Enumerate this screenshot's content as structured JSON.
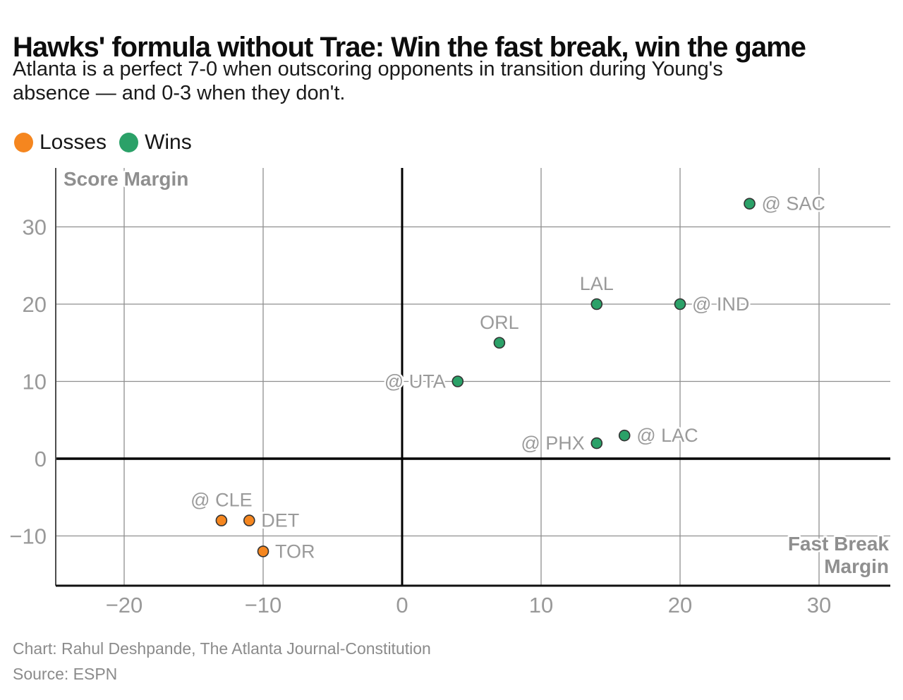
{
  "title": "Hawks' formula without Trae: Win the fast break, win the game",
  "subtitle": {
    "line1": "Atlanta is a perfect 7-0 when outscoring opponents in transition during Young's",
    "line2": "absence — and 0-3 when they don't."
  },
  "legend": {
    "items": [
      {
        "label": "Losses",
        "color": "#f5861f"
      },
      {
        "label": "Wins",
        "color": "#2ba168"
      }
    ]
  },
  "chart_data": {
    "type": "scatter",
    "xlabel": "Fast Break Margin",
    "ylabel": "Score Margin",
    "xlim": [
      -24.9,
      35.1
    ],
    "ylim": [
      -16.4,
      37.6
    ],
    "x_ticks": [
      -20,
      -10,
      0,
      10,
      20,
      30
    ],
    "y_ticks": [
      -10,
      0,
      10,
      20,
      30
    ],
    "grid": true,
    "zero_lines": true,
    "colors": {
      "grid": "#8f8f8f",
      "zero_line": "#000000",
      "axis": "#111111",
      "tick_label": "#999999",
      "point_label": "#9a9a9a",
      "axis_title": "#8f8f8f",
      "point_stroke": "#333333"
    },
    "series": [
      {
        "name": "Wins",
        "color": "#2ba168",
        "points": [
          {
            "label": "@ SAC",
            "x": 25,
            "y": 33,
            "label_pos": "right"
          },
          {
            "label": "LAL",
            "x": 14,
            "y": 20,
            "label_pos": "above"
          },
          {
            "label": "@ IND",
            "x": 20,
            "y": 20,
            "label_pos": "right"
          },
          {
            "label": "ORL",
            "x": 7,
            "y": 15,
            "label_pos": "above"
          },
          {
            "label": "@ UTA",
            "x": 4,
            "y": 10,
            "label_pos": "left"
          },
          {
            "label": "@ LAC",
            "x": 16,
            "y": 3,
            "label_pos": "right"
          },
          {
            "label": "@ PHX",
            "x": 14,
            "y": 2,
            "label_pos": "left"
          }
        ]
      },
      {
        "name": "Losses",
        "color": "#f5861f",
        "points": [
          {
            "label": "@ CLE",
            "x": -13,
            "y": -8,
            "label_pos": "above"
          },
          {
            "label": "DET",
            "x": -11,
            "y": -8,
            "label_pos": "right"
          },
          {
            "label": "TOR",
            "x": -10,
            "y": -12,
            "label_pos": "right"
          }
        ]
      }
    ]
  },
  "footer": {
    "credit": "Chart: Rahul Deshpande, The Atlanta Journal-Constitution",
    "source": "Source: ESPN"
  }
}
